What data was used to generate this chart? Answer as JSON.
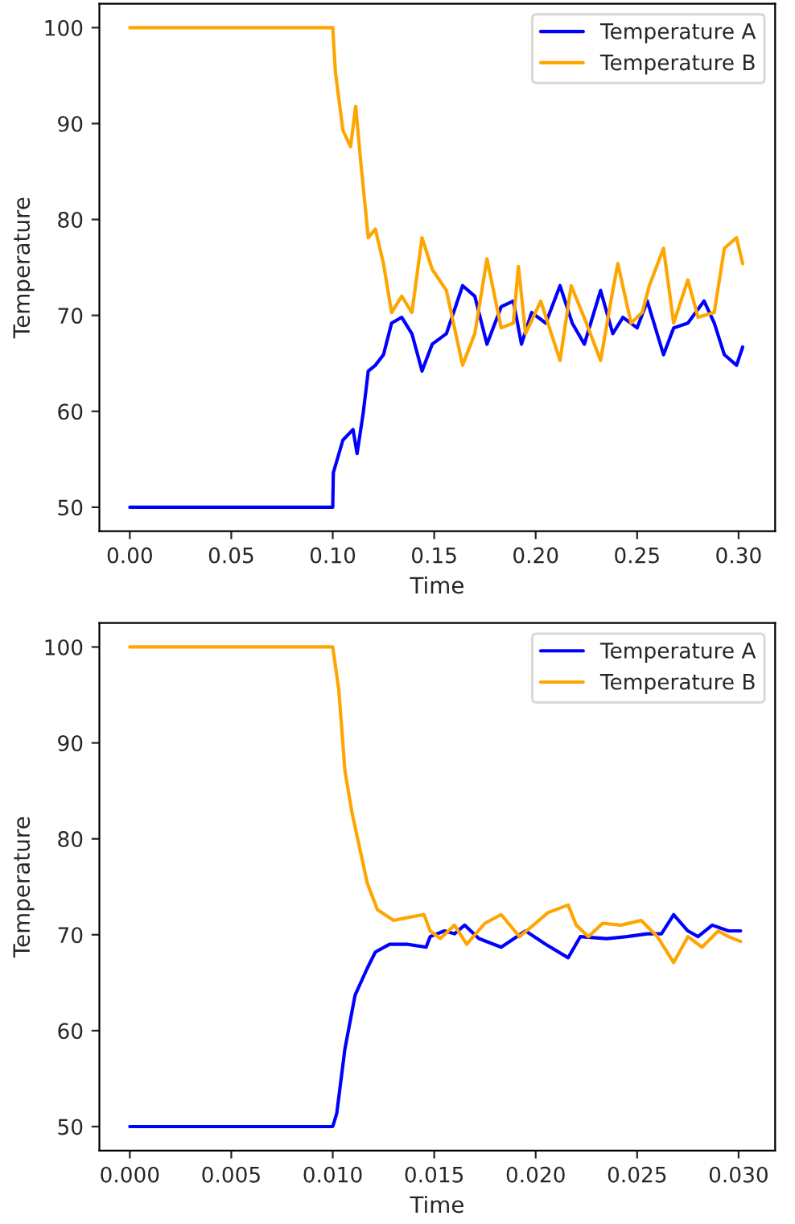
{
  "chart_data": [
    {
      "type": "line",
      "xlabel": "Time",
      "ylabel": "Temperature",
      "xlim": [
        -0.015,
        0.318
      ],
      "ylim": [
        47.5,
        102.5
      ],
      "xticks": [
        {
          "value": 0,
          "label": "0.00"
        },
        {
          "value": 0.05,
          "label": "0.05"
        },
        {
          "value": 0.1,
          "label": "0.10"
        },
        {
          "value": 0.15,
          "label": "0.15"
        },
        {
          "value": 0.2,
          "label": "0.20"
        },
        {
          "value": 0.25,
          "label": "0.25"
        },
        {
          "value": 0.3,
          "label": "0.30"
        }
      ],
      "yticks": [
        50,
        60,
        70,
        80,
        90,
        100
      ],
      "grid": false,
      "legend": "top right",
      "series": [
        {
          "name": "Temperature A",
          "color": "#0000ff",
          "x": [
            0,
            0.1,
            0.1003,
            0.105,
            0.11,
            0.112,
            0.115,
            0.1175,
            0.121,
            0.125,
            0.129,
            0.134,
            0.139,
            0.144,
            0.149,
            0.156,
            0.164,
            0.17,
            0.176,
            0.183,
            0.189,
            0.193,
            0.198,
            0.205,
            0.212,
            0.218,
            0.224,
            0.232,
            0.238,
            0.243,
            0.25,
            0.255,
            0.263,
            0.268,
            0.275,
            0.283,
            0.288,
            0.293,
            0.299,
            0.302
          ],
          "values": [
            50,
            50,
            53.6,
            57,
            58.1,
            55.6,
            59.8,
            64.2,
            64.8,
            65.9,
            69.2,
            69.8,
            68.1,
            64.2,
            67,
            68.1,
            73.1,
            72,
            67,
            70.9,
            71.5,
            67,
            70.3,
            69.2,
            73.1,
            69.2,
            67,
            72.6,
            68.1,
            69.8,
            68.7,
            71.5,
            65.9,
            68.7,
            69.2,
            71.5,
            69.2,
            65.9,
            64.8,
            66.7
          ]
        },
        {
          "name": "Temperature B",
          "color": "#ffa500",
          "x": [
            0,
            0.1,
            0.1013,
            0.105,
            0.1088,
            0.1113,
            0.1138,
            0.1175,
            0.121,
            0.125,
            0.129,
            0.134,
            0.139,
            0.144,
            0.149,
            0.156,
            0.164,
            0.17,
            0.176,
            0.183,
            0.189,
            0.1915,
            0.195,
            0.2025,
            0.212,
            0.2175,
            0.225,
            0.232,
            0.238,
            0.2405,
            0.247,
            0.2525,
            0.256,
            0.263,
            0.268,
            0.275,
            0.28,
            0.288,
            0.293,
            0.299,
            0.302
          ],
          "values": [
            100,
            100,
            95.4,
            89.3,
            87.6,
            91.8,
            86,
            78.1,
            79,
            75.4,
            70.3,
            72,
            70.3,
            78.1,
            74.8,
            72.6,
            64.8,
            68.1,
            75.9,
            68.7,
            69.2,
            75.1,
            68.1,
            71.5,
            65.3,
            73.1,
            69.2,
            65.3,
            72.6,
            75.4,
            69.2,
            70.3,
            73.1,
            77,
            69.2,
            73.7,
            69.8,
            70.3,
            77,
            78.1,
            75.4
          ]
        }
      ]
    },
    {
      "type": "line",
      "xlabel": "Time",
      "ylabel": "Temperature",
      "xlim": [
        -0.0015,
        0.0318
      ],
      "ylim": [
        47.5,
        102.5
      ],
      "xticks": [
        {
          "value": 0,
          "label": "0.000"
        },
        {
          "value": 0.005,
          "label": "0.005"
        },
        {
          "value": 0.01,
          "label": "0.010"
        },
        {
          "value": 0.015,
          "label": "0.015"
        },
        {
          "value": 0.02,
          "label": "0.020"
        },
        {
          "value": 0.025,
          "label": "0.025"
        },
        {
          "value": 0.03,
          "label": "0.030"
        }
      ],
      "yticks": [
        50,
        60,
        70,
        80,
        90,
        100
      ],
      "grid": false,
      "legend": "top right",
      "series": [
        {
          "name": "Temperature A",
          "color": "#0000ff",
          "x": [
            0,
            0.01,
            0.0102,
            0.0106,
            0.0111,
            0.0117,
            0.0121,
            0.0128,
            0.0137,
            0.0146,
            0.0148,
            0.0155,
            0.016,
            0.0165,
            0.0172,
            0.0183,
            0.0195,
            0.0205,
            0.0216,
            0.0222,
            0.0235,
            0.0245,
            0.0255,
            0.0262,
            0.0268,
            0.0275,
            0.028,
            0.0287,
            0.0295,
            0.0301
          ],
          "values": [
            50,
            50,
            51.4,
            58.1,
            63.7,
            66.5,
            68.2,
            69,
            69,
            68.7,
            69.8,
            70.4,
            70.1,
            71,
            69.6,
            68.7,
            70.4,
            69,
            67.6,
            69.8,
            69.6,
            69.8,
            70.1,
            70.1,
            72.1,
            70.4,
            69.8,
            71,
            70.4,
            70.4
          ]
        },
        {
          "name": "Temperature B",
          "color": "#ffa500",
          "x": [
            0,
            0.01,
            0.0103,
            0.0106,
            0.01095,
            0.0113,
            0.0117,
            0.0122,
            0.013,
            0.0137,
            0.0145,
            0.0148,
            0.0153,
            0.016,
            0.0166,
            0.0175,
            0.0183,
            0.0192,
            0.02,
            0.0206,
            0.0216,
            0.022,
            0.0226,
            0.0233,
            0.0242,
            0.0252,
            0.026,
            0.0268,
            0.0275,
            0.0282,
            0.029,
            0.0295,
            0.0301
          ],
          "values": [
            100,
            100,
            95.5,
            87.1,
            82.7,
            79.3,
            75.4,
            72.6,
            71.5,
            71.8,
            72.1,
            70.4,
            69.6,
            71,
            69,
            71.2,
            72.1,
            69.8,
            71.2,
            72.3,
            73.1,
            71,
            69.8,
            71.2,
            71,
            71.5,
            69.8,
            67.1,
            69.8,
            68.7,
            70.4,
            69.8,
            69.3
          ]
        }
      ]
    }
  ]
}
